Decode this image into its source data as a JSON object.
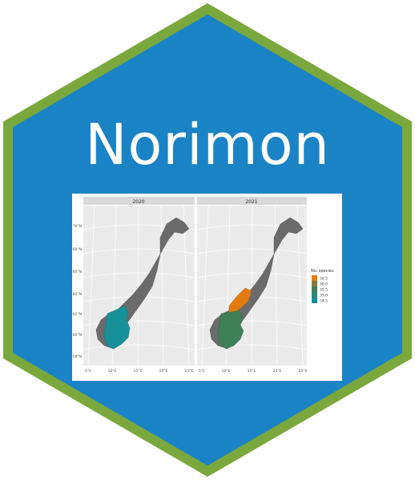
{
  "sticker": {
    "title": "Norimon",
    "colors": {
      "fill": "#1a83c6",
      "border": "#7aa83d"
    }
  },
  "figure": {
    "panels": [
      {
        "year": "2020",
        "colors": {
          "north": "#6b6b6b",
          "south": "#178f99"
        }
      },
      {
        "year": "2021",
        "colors": {
          "north": "#6b6b6b",
          "center": "#e47b10",
          "south": "#3f8058"
        }
      }
    ],
    "y_ticks": [
      "70°N",
      "68°N",
      "66°N",
      "64°N",
      "62°N",
      "60°N",
      "58°N"
    ],
    "x_ticks": [
      "5°E",
      "10°E",
      "15°E",
      "20°E",
      "25°E"
    ],
    "legend": {
      "title": "No. species",
      "items": [
        {
          "label": "36.5",
          "color": "#e47b10"
        },
        {
          "label": "36.0",
          "color": "#8a7a35"
        },
        {
          "label": "35.5",
          "color": "#3f8058"
        },
        {
          "label": "35.0",
          "color": "#2a8872"
        },
        {
          "label": "34.5",
          "color": "#178f99"
        }
      ]
    }
  }
}
